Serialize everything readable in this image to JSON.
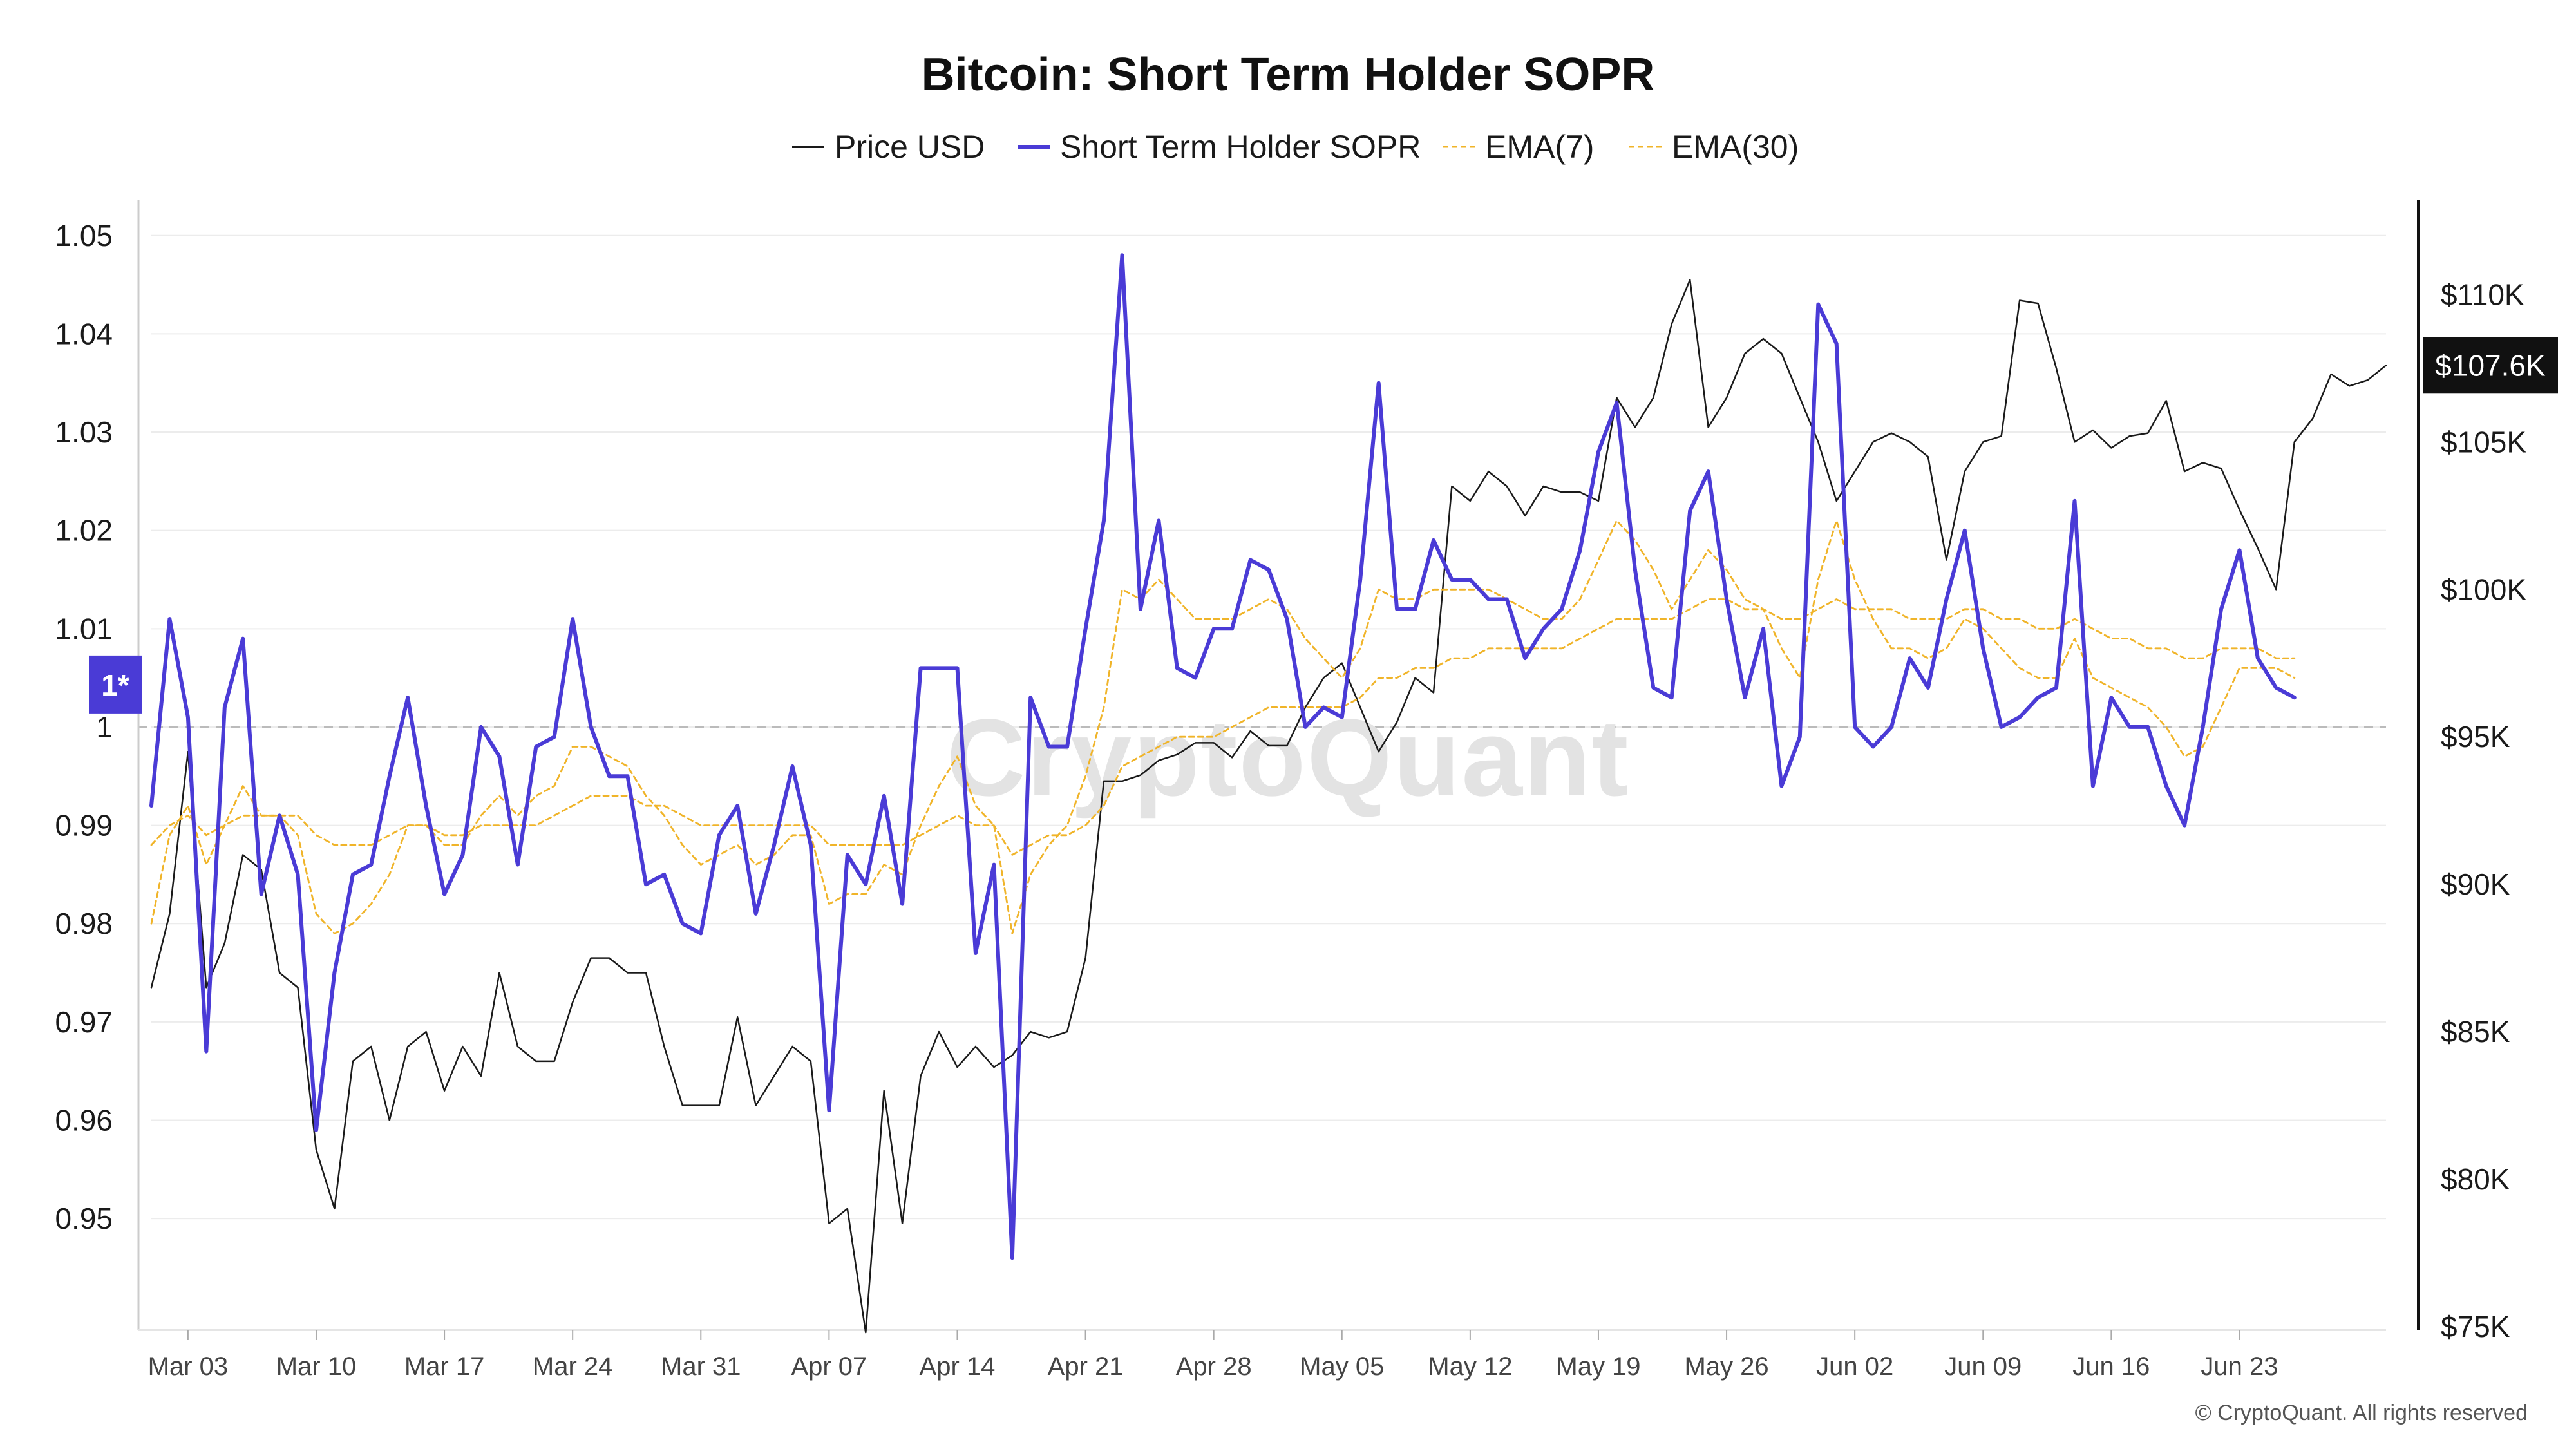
{
  "colors": {
    "price": "#1a1a1a",
    "sopr": "#4a3bd6",
    "ema": "#f0b429",
    "grid": "#ececec",
    "reference": "#bbbbbb",
    "price_badge": "#111111",
    "sopr_badge": "#4a3bd6"
  },
  "chart_data": {
    "type": "line",
    "title": "Bitcoin: Short Term Holder SOPR",
    "legend": [
      "Price USD",
      "Short Term Holder SOPR",
      "EMA(7)",
      "EMA(30)"
    ],
    "legend_position": "top-center",
    "grid": true,
    "x_start_date": "2025-03-01",
    "x_tick_labels": [
      "Mar 03",
      "Mar 10",
      "Mar 17",
      "Mar 24",
      "Mar 31",
      "Apr 07",
      "Apr 14",
      "Apr 21",
      "Apr 28",
      "May 05",
      "May 12",
      "May 19",
      "May 26",
      "Jun 02",
      "Jun 09",
      "Jun 16",
      "Jun 23"
    ],
    "y_left": {
      "ticks": [
        "0.95",
        "0.96",
        "0.97",
        "0.98",
        "0.99",
        "1",
        "1.01",
        "1.02",
        "1.03",
        "1.04",
        "1.05"
      ],
      "range": [
        0.939,
        1.053
      ],
      "reference_value": 1.0,
      "reference_badge": "1*"
    },
    "y_right": {
      "ticks": [
        "$75K",
        "$80K",
        "$85K",
        "$90K",
        "$95K",
        "$100K",
        "$105K",
        "$110K"
      ],
      "range": [
        75000,
        113000
      ],
      "last_value_label": "$107.6K",
      "last_value": 107600
    },
    "series": [
      {
        "name": "Price USD",
        "axis": "right",
        "values": [
          86500,
          89000,
          94500,
          86500,
          88000,
          91000,
          90500,
          87000,
          86500,
          81000,
          79000,
          84000,
          84500,
          82000,
          84500,
          85000,
          83000,
          84500,
          83500,
          87000,
          84500,
          84000,
          84000,
          86000,
          87500,
          87500,
          87000,
          87000,
          84500,
          82500,
          82500,
          82500,
          85500,
          82500,
          83500,
          84500,
          84000,
          78500,
          79000,
          74800,
          83000,
          78500,
          83500,
          85000,
          83800,
          84500,
          83800,
          84200,
          85000,
          84800,
          85000,
          87500,
          93500,
          93500,
          93700,
          94200,
          94400,
          94800,
          94800,
          94300,
          95200,
          94700,
          94700,
          96000,
          97000,
          97500,
          96000,
          94500,
          95500,
          97000,
          96500,
          103500,
          103000,
          104000,
          103500,
          102500,
          103500,
          103300,
          103300,
          103000,
          106500,
          105500,
          106500,
          109000,
          110500,
          105500,
          106500,
          108000,
          108500,
          108000,
          106500,
          105000,
          103000,
          104000,
          105000,
          105300,
          105000,
          104500,
          101000,
          104000,
          105000,
          105200,
          109800,
          109700,
          107500,
          105000,
          105400,
          104800,
          105200,
          105300,
          106400,
          104000,
          104300,
          104100,
          102700,
          101400,
          100000,
          105000,
          105800,
          107300,
          106900,
          107100,
          107600
        ]
      },
      {
        "name": "Short Term Holder SOPR",
        "axis": "left",
        "values": [
          0.992,
          1.011,
          1.001,
          0.967,
          1.002,
          1.009,
          0.983,
          0.991,
          0.985,
          0.959,
          0.975,
          0.985,
          0.986,
          0.995,
          1.003,
          0.992,
          0.983,
          0.987,
          1.0,
          0.997,
          0.986,
          0.998,
          0.999,
          1.011,
          1.0,
          0.995,
          0.995,
          0.984,
          0.985,
          0.98,
          0.979,
          0.989,
          0.992,
          0.981,
          0.988,
          0.996,
          0.988,
          0.961,
          0.987,
          0.984,
          0.993,
          0.982,
          1.006,
          1.006,
          1.006,
          0.977,
          0.986,
          0.946,
          1.003,
          0.998,
          0.998,
          1.01,
          1.021,
          1.048,
          1.012,
          1.021,
          1.006,
          1.005,
          1.01,
          1.01,
          1.017,
          1.016,
          1.011,
          1.0,
          1.002,
          1.001,
          1.015,
          1.035,
          1.012,
          1.012,
          1.019,
          1.015,
          1.015,
          1.013,
          1.013,
          1.007,
          1.01,
          1.012,
          1.018,
          1.028,
          1.033,
          1.016,
          1.004,
          1.003,
          1.022,
          1.026,
          1.013,
          1.003,
          1.01,
          0.994,
          0.999,
          1.043,
          1.039,
          1.0,
          0.998,
          1.0,
          1.007,
          1.004,
          1.013,
          1.02,
          1.008,
          1.0,
          1.001,
          1.003,
          1.004,
          1.023,
          0.994,
          1.003,
          1.0,
          1.0,
          0.994,
          0.99,
          1.0,
          1.012,
          1.018,
          1.007,
          1.004,
          1.003
        ]
      },
      {
        "name": "EMA(7)",
        "axis": "left",
        "values": [
          0.98,
          0.989,
          0.992,
          0.986,
          0.99,
          0.994,
          0.991,
          0.991,
          0.989,
          0.981,
          0.979,
          0.98,
          0.982,
          0.985,
          0.99,
          0.99,
          0.988,
          0.988,
          0.991,
          0.993,
          0.991,
          0.993,
          0.994,
          0.998,
          0.998,
          0.997,
          0.996,
          0.993,
          0.991,
          0.988,
          0.986,
          0.987,
          0.988,
          0.986,
          0.987,
          0.989,
          0.989,
          0.982,
          0.983,
          0.983,
          0.986,
          0.985,
          0.99,
          0.994,
          0.997,
          0.992,
          0.99,
          0.979,
          0.985,
          0.988,
          0.99,
          0.995,
          1.002,
          1.014,
          1.013,
          1.015,
          1.013,
          1.011,
          1.011,
          1.011,
          1.012,
          1.013,
          1.012,
          1.009,
          1.007,
          1.005,
          1.008,
          1.014,
          1.013,
          1.013,
          1.014,
          1.014,
          1.014,
          1.014,
          1.013,
          1.012,
          1.011,
          1.011,
          1.013,
          1.017,
          1.021,
          1.019,
          1.016,
          1.012,
          1.015,
          1.018,
          1.016,
          1.013,
          1.012,
          1.008,
          1.005,
          1.015,
          1.021,
          1.015,
          1.011,
          1.008,
          1.008,
          1.007,
          1.008,
          1.011,
          1.01,
          1.008,
          1.006,
          1.005,
          1.005,
          1.009,
          1.005,
          1.004,
          1.003,
          1.002,
          1.0,
          0.997,
          0.998,
          1.002,
          1.006,
          1.006,
          1.006,
          1.005
        ]
      },
      {
        "name": "EMA(30)",
        "axis": "left",
        "values": [
          0.988,
          0.99,
          0.991,
          0.989,
          0.99,
          0.991,
          0.991,
          0.991,
          0.991,
          0.989,
          0.988,
          0.988,
          0.988,
          0.989,
          0.99,
          0.99,
          0.989,
          0.989,
          0.99,
          0.99,
          0.99,
          0.99,
          0.991,
          0.992,
          0.993,
          0.993,
          0.993,
          0.992,
          0.992,
          0.991,
          0.99,
          0.99,
          0.99,
          0.99,
          0.99,
          0.99,
          0.99,
          0.988,
          0.988,
          0.988,
          0.988,
          0.988,
          0.989,
          0.99,
          0.991,
          0.99,
          0.99,
          0.987,
          0.988,
          0.989,
          0.989,
          0.99,
          0.992,
          0.996,
          0.997,
          0.998,
          0.999,
          0.999,
          0.999,
          1.0,
          1.001,
          1.002,
          1.002,
          1.002,
          1.002,
          1.002,
          1.003,
          1.005,
          1.005,
          1.006,
          1.006,
          1.007,
          1.007,
          1.008,
          1.008,
          1.008,
          1.008,
          1.008,
          1.009,
          1.01,
          1.011,
          1.011,
          1.011,
          1.011,
          1.012,
          1.013,
          1.013,
          1.012,
          1.012,
          1.011,
          1.011,
          1.012,
          1.013,
          1.012,
          1.012,
          1.012,
          1.011,
          1.011,
          1.011,
          1.012,
          1.012,
          1.011,
          1.011,
          1.01,
          1.01,
          1.011,
          1.01,
          1.009,
          1.009,
          1.008,
          1.008,
          1.007,
          1.007,
          1.008,
          1.008,
          1.008,
          1.007,
          1.007
        ]
      }
    ]
  },
  "watermark": "CryptoQuant",
  "copyright": "© CryptoQuant. All rights reserved"
}
